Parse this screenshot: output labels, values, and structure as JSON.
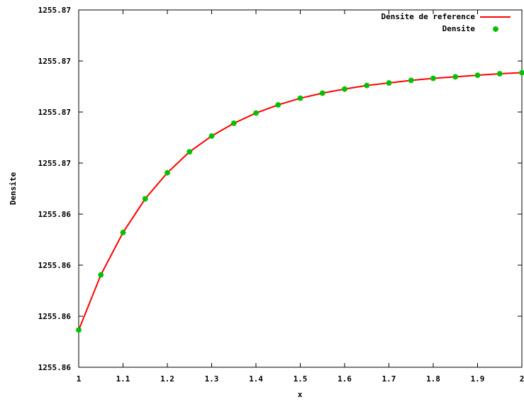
{
  "chart_data": {
    "type": "line",
    "xlabel": "x",
    "ylabel": "Densite",
    "xlim": [
      1,
      2
    ],
    "ylim": [
      0,
      7
    ],
    "x_ticks": [
      {
        "value": 1,
        "label": "1"
      },
      {
        "value": 1.1,
        "label": "1.1"
      },
      {
        "value": 1.2,
        "label": "1.2"
      },
      {
        "value": 1.3,
        "label": "1.3"
      },
      {
        "value": 1.4,
        "label": "1.4"
      },
      {
        "value": 1.5,
        "label": "1.5"
      },
      {
        "value": 1.6,
        "label": "1.6"
      },
      {
        "value": 1.7,
        "label": "1.7"
      },
      {
        "value": 1.8,
        "label": "1.8"
      },
      {
        "value": 1.9,
        "label": "1.9"
      },
      {
        "value": 2,
        "label": "2"
      }
    ],
    "y_ticks": [
      {
        "value": 0,
        "label": "1255.86"
      },
      {
        "value": 1,
        "label": "1255.86"
      },
      {
        "value": 2,
        "label": "1255.86"
      },
      {
        "value": 3,
        "label": "1255.86"
      },
      {
        "value": 4,
        "label": "1255.87"
      },
      {
        "value": 5,
        "label": "1255.87"
      },
      {
        "value": 6,
        "label": "1255.87"
      },
      {
        "value": 7,
        "label": "1255.87"
      }
    ],
    "y_units_note": "y values expressed on the tick index scale shown (0 = bottom tick, 7 = top tick)",
    "legend_position": "top-right",
    "series": [
      {
        "name": "Densite de reference",
        "style": "line",
        "color": "#ff0000",
        "x": [
          1.0,
          1.05,
          1.1,
          1.15,
          1.2,
          1.25,
          1.3,
          1.35,
          1.4,
          1.45,
          1.5,
          1.55,
          1.6,
          1.65,
          1.7,
          1.75,
          1.8,
          1.85,
          1.9,
          1.95,
          2.0
        ],
        "values": [
          0.73,
          1.81,
          2.64,
          3.3,
          3.81,
          4.22,
          4.53,
          4.78,
          4.98,
          5.14,
          5.27,
          5.37,
          5.45,
          5.52,
          5.57,
          5.62,
          5.66,
          5.69,
          5.72,
          5.75,
          5.77
        ]
      },
      {
        "name": "Densite",
        "style": "points",
        "color": "#00c000",
        "x": [
          1.0,
          1.05,
          1.1,
          1.15,
          1.2,
          1.25,
          1.3,
          1.35,
          1.4,
          1.45,
          1.5,
          1.55,
          1.6,
          1.65,
          1.7,
          1.75,
          1.8,
          1.85,
          1.9,
          1.95,
          2.0
        ],
        "values": [
          0.73,
          1.81,
          2.64,
          3.3,
          3.81,
          4.22,
          4.53,
          4.78,
          4.98,
          5.14,
          5.27,
          5.37,
          5.45,
          5.52,
          5.57,
          5.62,
          5.66,
          5.69,
          5.72,
          5.75,
          5.77
        ]
      }
    ]
  }
}
